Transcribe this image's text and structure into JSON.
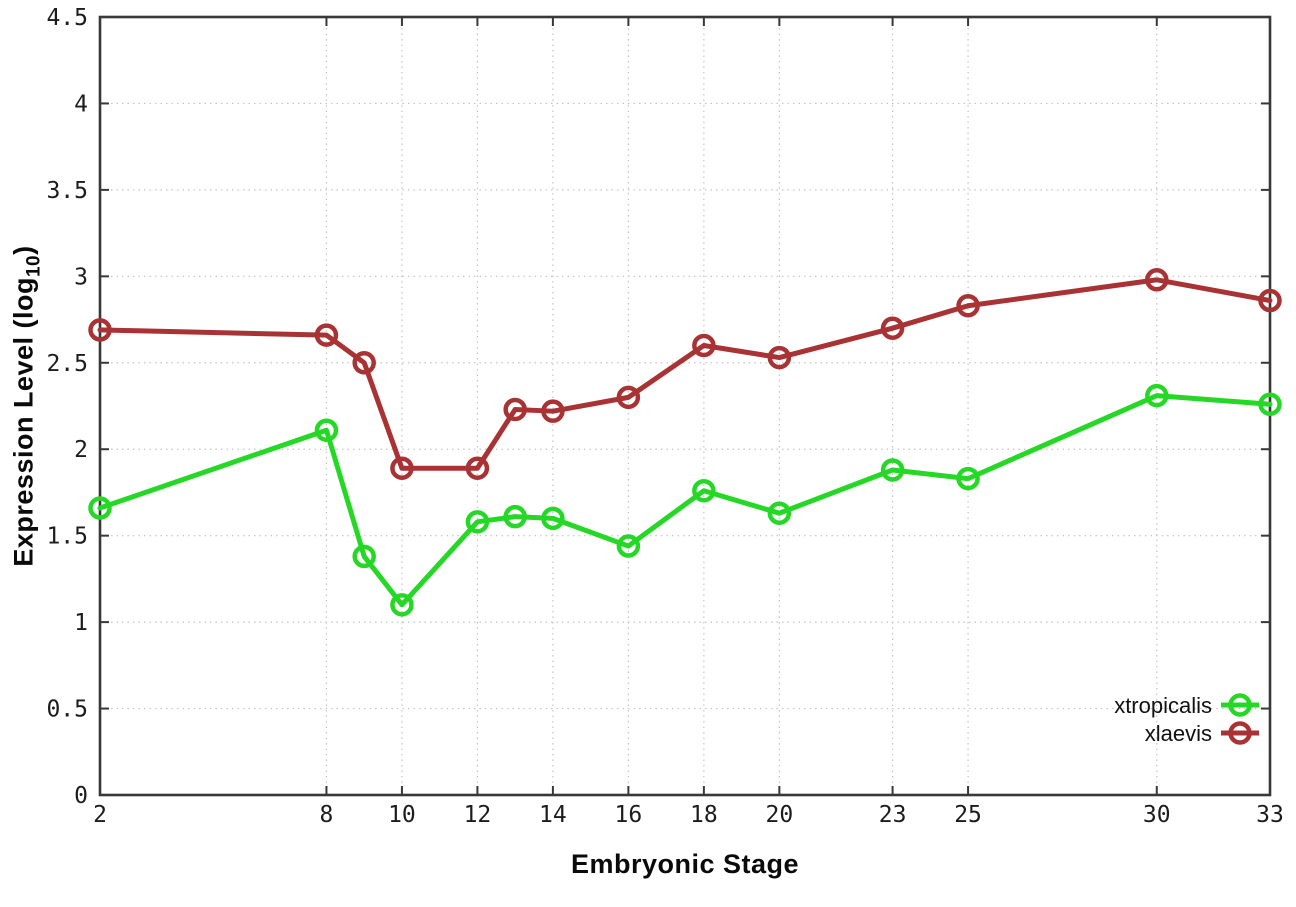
{
  "chart_data": {
    "type": "line",
    "title": "",
    "xlabel": "Embryonic Stage",
    "ylabel_prefix": "Expression Level (log",
    "ylabel_sub": "10",
    "ylabel_suffix": ")",
    "x": [
      2,
      8,
      9,
      10,
      12,
      13,
      14,
      16,
      18,
      20,
      23,
      25,
      30,
      33
    ],
    "x_ticks": [
      2,
      8,
      10,
      12,
      14,
      16,
      18,
      20,
      23,
      25,
      30,
      33
    ],
    "y_ticks": [
      0,
      0.5,
      1,
      1.5,
      2,
      2.5,
      3,
      3.5,
      4,
      4.5
    ],
    "xlim": [
      2,
      33
    ],
    "ylim": [
      0,
      4.5
    ],
    "grid": true,
    "marker": "open-circle",
    "legend_position": "bottom-right",
    "series": [
      {
        "name": "xtropicalis",
        "color": "#26d826",
        "values": [
          1.66,
          2.11,
          1.38,
          1.1,
          1.58,
          1.61,
          1.6,
          1.44,
          1.76,
          1.63,
          1.88,
          1.83,
          2.31,
          2.26
        ]
      },
      {
        "name": "xlaevis",
        "color": "#a93334",
        "values": [
          2.69,
          2.66,
          2.5,
          1.89,
          1.89,
          2.23,
          2.22,
          2.3,
          2.6,
          2.53,
          2.7,
          2.83,
          2.98,
          2.86
        ]
      }
    ],
    "style_colors": {
      "axis": "#383838",
      "grid": "#c4c4c4",
      "tick_text": "#1c1c1c"
    }
  }
}
